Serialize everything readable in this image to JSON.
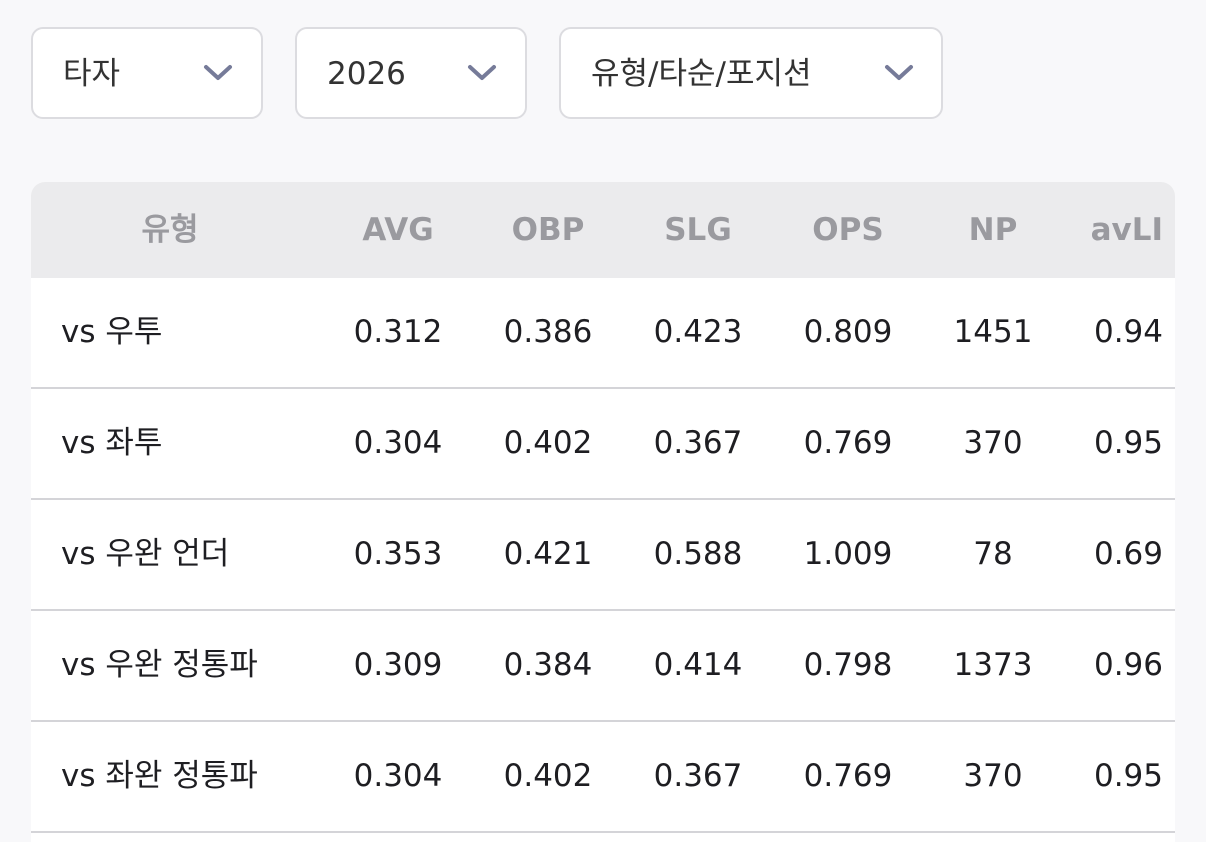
{
  "filters": [
    "타자",
    "2026",
    "유형/타순/포지션"
  ],
  "table": {
    "header": [
      "유형",
      "AVG",
      "OBP",
      "SLG",
      "OPS",
      "NP",
      "avLI"
    ],
    "rows": [
      [
        "vs 우투",
        "0.312",
        "0.386",
        "0.423",
        "0.809",
        "1451",
        "0.94"
      ],
      [
        "vs 좌투",
        "0.304",
        "0.402",
        "0.367",
        "0.769",
        "370",
        "0.95"
      ],
      [
        "vs 우완 언더",
        "0.353",
        "0.421",
        "0.588",
        "1.009",
        "78",
        "0.69"
      ],
      [
        "vs 우완 정통파",
        "0.309",
        "0.384",
        "0.414",
        "0.798",
        "1373",
        "0.96"
      ],
      [
        "vs 좌완 정통파",
        "0.304",
        "0.402",
        "0.367",
        "0.769",
        "370",
        "0.95"
      ]
    ]
  }
}
